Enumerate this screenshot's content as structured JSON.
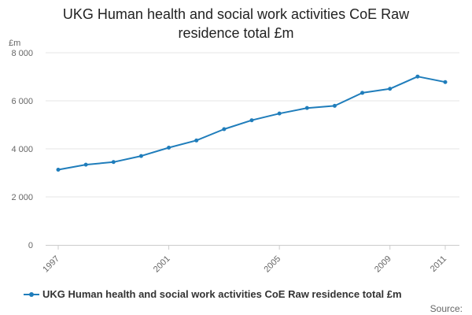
{
  "chart_data": {
    "type": "line",
    "title_lines": [
      "UKG Human health and social work activities CoE Raw",
      "residence total £m"
    ],
    "ylabel": "£m",
    "xlabel": "",
    "ylim": [
      0,
      8000
    ],
    "yticks": [
      0,
      2000,
      4000,
      6000,
      8000
    ],
    "ytick_labels": [
      "0",
      "2 000",
      "4 000",
      "6 000",
      "8 000"
    ],
    "xlim": [
      1997,
      2011
    ],
    "xticks": [
      1997,
      2001,
      2005,
      2009,
      2011
    ],
    "xtick_labels": [
      "1997",
      "2001",
      "2005",
      "2009",
      "2011"
    ],
    "grid": true,
    "legend_position": "bottom-left",
    "series": [
      {
        "name": "UKG Human health and social work activities CoE Raw residence total £m",
        "color": "#1f7dbb",
        "x": [
          1997,
          1998,
          1999,
          2000,
          2001,
          2002,
          2003,
          2004,
          2005,
          2006,
          2007,
          2008,
          2009,
          2010,
          2011
        ],
        "values": [
          3130,
          3340,
          3450,
          3700,
          4050,
          4350,
          4820,
          5190,
          5470,
          5700,
          5790,
          6330,
          6500,
          7010,
          6780
        ]
      }
    ]
  },
  "legend": {
    "label": "UKG Human health and social work activities CoE Raw residence total £m"
  },
  "source_label": "Source:"
}
